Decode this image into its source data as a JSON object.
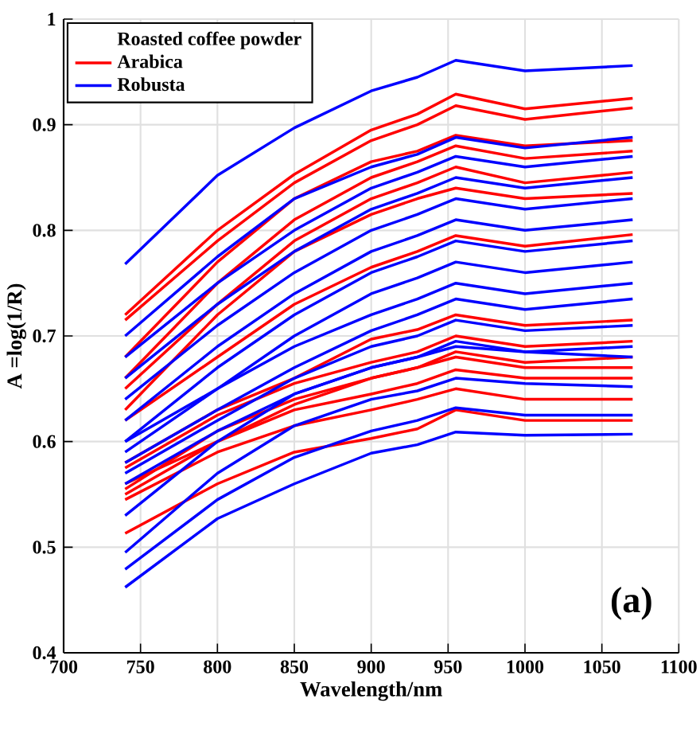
{
  "chart_data": {
    "type": "line",
    "xlabel": "Wavelength/nm",
    "ylabel": "A  =log(1/R)",
    "legend_title": "Roasted coffee powder",
    "annotations": [
      "(a)"
    ],
    "xlim": [
      700,
      1100
    ],
    "xticks": [
      700,
      750,
      800,
      850,
      900,
      950,
      1000,
      1050,
      1100
    ],
    "ylim": [
      0.4,
      1
    ],
    "yticks": [
      0.4,
      0.5,
      0.6,
      0.7,
      0.8,
      0.9,
      1
    ],
    "grid": true,
    "legend": "top left",
    "marker": "none",
    "line_style": "solid",
    "x": [
      740,
      800,
      850,
      900,
      930,
      955,
      1000,
      1070
    ],
    "series": [
      {
        "name": "Arabica",
        "color": "#ff0000",
        "values": [
          0.72,
          0.8,
          0.853,
          0.895,
          0.91,
          0.929,
          0.915,
          0.925
        ]
      },
      {
        "color": "#ff0000",
        "values": [
          0.715,
          0.79,
          0.845,
          0.885,
          0.9,
          0.918,
          0.905,
          0.916
        ]
      },
      {
        "color": "#ff0000",
        "values": [
          0.68,
          0.77,
          0.83,
          0.865,
          0.875,
          0.89,
          0.88,
          0.885
        ]
      },
      {
        "color": "#ff0000",
        "values": [
          0.66,
          0.75,
          0.81,
          0.85,
          0.865,
          0.88,
          0.868,
          0.875
        ]
      },
      {
        "color": "#ff0000",
        "values": [
          0.65,
          0.73,
          0.79,
          0.83,
          0.845,
          0.86,
          0.845,
          0.855
        ]
      },
      {
        "color": "#ff0000",
        "values": [
          0.63,
          0.72,
          0.78,
          0.815,
          0.83,
          0.84,
          0.83,
          0.835
        ]
      },
      {
        "color": "#ff0000",
        "values": [
          0.62,
          0.68,
          0.73,
          0.765,
          0.78,
          0.795,
          0.785,
          0.796
        ]
      },
      {
        "color": "#ff0000",
        "values": [
          0.58,
          0.63,
          0.66,
          0.697,
          0.706,
          0.72,
          0.71,
          0.715
        ]
      },
      {
        "color": "#ff0000",
        "values": [
          0.575,
          0.625,
          0.655,
          0.675,
          0.685,
          0.7,
          0.69,
          0.695
        ]
      },
      {
        "color": "#ff0000",
        "values": [
          0.56,
          0.6,
          0.635,
          0.66,
          0.67,
          0.685,
          0.675,
          0.68
        ]
      },
      {
        "color": "#ff0000",
        "values": [
          0.513,
          0.56,
          0.59,
          0.603,
          0.612,
          0.63,
          0.62,
          0.62
        ]
      },
      {
        "color": "#ff0000",
        "values": [
          0.545,
          0.59,
          0.615,
          0.63,
          0.64,
          0.65,
          0.64,
          0.64
        ]
      },
      {
        "color": "#ff0000",
        "values": [
          0.55,
          0.6,
          0.63,
          0.645,
          0.655,
          0.668,
          0.66,
          0.66
        ]
      },
      {
        "color": "#ff0000",
        "values": [
          0.555,
          0.61,
          0.64,
          0.66,
          0.67,
          0.68,
          0.67,
          0.67
        ]
      },
      {
        "name": "Robusta",
        "color": "#0000ff",
        "values": [
          0.768,
          0.852,
          0.897,
          0.932,
          0.945,
          0.961,
          0.951,
          0.956
        ]
      },
      {
        "color": "#0000ff",
        "values": [
          0.7,
          0.775,
          0.83,
          0.86,
          0.872,
          0.888,
          0.878,
          0.888
        ]
      },
      {
        "color": "#0000ff",
        "values": [
          0.68,
          0.75,
          0.8,
          0.84,
          0.855,
          0.87,
          0.86,
          0.87
        ]
      },
      {
        "color": "#0000ff",
        "values": [
          0.66,
          0.73,
          0.78,
          0.82,
          0.835,
          0.85,
          0.84,
          0.85
        ]
      },
      {
        "color": "#0000ff",
        "values": [
          0.64,
          0.71,
          0.76,
          0.8,
          0.815,
          0.83,
          0.82,
          0.83
        ]
      },
      {
        "color": "#0000ff",
        "values": [
          0.62,
          0.69,
          0.74,
          0.78,
          0.795,
          0.81,
          0.8,
          0.81
        ]
      },
      {
        "color": "#0000ff",
        "values": [
          0.6,
          0.67,
          0.72,
          0.76,
          0.775,
          0.79,
          0.78,
          0.79
        ]
      },
      {
        "color": "#0000ff",
        "values": [
          0.59,
          0.65,
          0.7,
          0.74,
          0.755,
          0.77,
          0.76,
          0.77
        ]
      },
      {
        "color": "#0000ff",
        "values": [
          0.6,
          0.65,
          0.69,
          0.72,
          0.735,
          0.75,
          0.74,
          0.75
        ]
      },
      {
        "color": "#0000ff",
        "values": [
          0.58,
          0.63,
          0.67,
          0.705,
          0.72,
          0.735,
          0.725,
          0.735
        ]
      },
      {
        "color": "#0000ff",
        "values": [
          0.57,
          0.62,
          0.66,
          0.69,
          0.7,
          0.715,
          0.705,
          0.71
        ]
      },
      {
        "color": "#0000ff",
        "values": [
          0.56,
          0.61,
          0.645,
          0.67,
          0.68,
          0.695,
          0.685,
          0.69
        ]
      },
      {
        "color": "#0000ff",
        "values": [
          0.53,
          0.6,
          0.645,
          0.67,
          0.68,
          0.69,
          0.685,
          0.68
        ]
      },
      {
        "color": "#0000ff",
        "values": [
          0.495,
          0.57,
          0.615,
          0.64,
          0.648,
          0.66,
          0.655,
          0.652
        ]
      },
      {
        "color": "#0000ff",
        "values": [
          0.479,
          0.545,
          0.585,
          0.61,
          0.62,
          0.632,
          0.625,
          0.625
        ]
      },
      {
        "color": "#0000ff",
        "values": [
          0.462,
          0.527,
          0.56,
          0.589,
          0.597,
          0.609,
          0.606,
          0.607
        ]
      }
    ]
  }
}
